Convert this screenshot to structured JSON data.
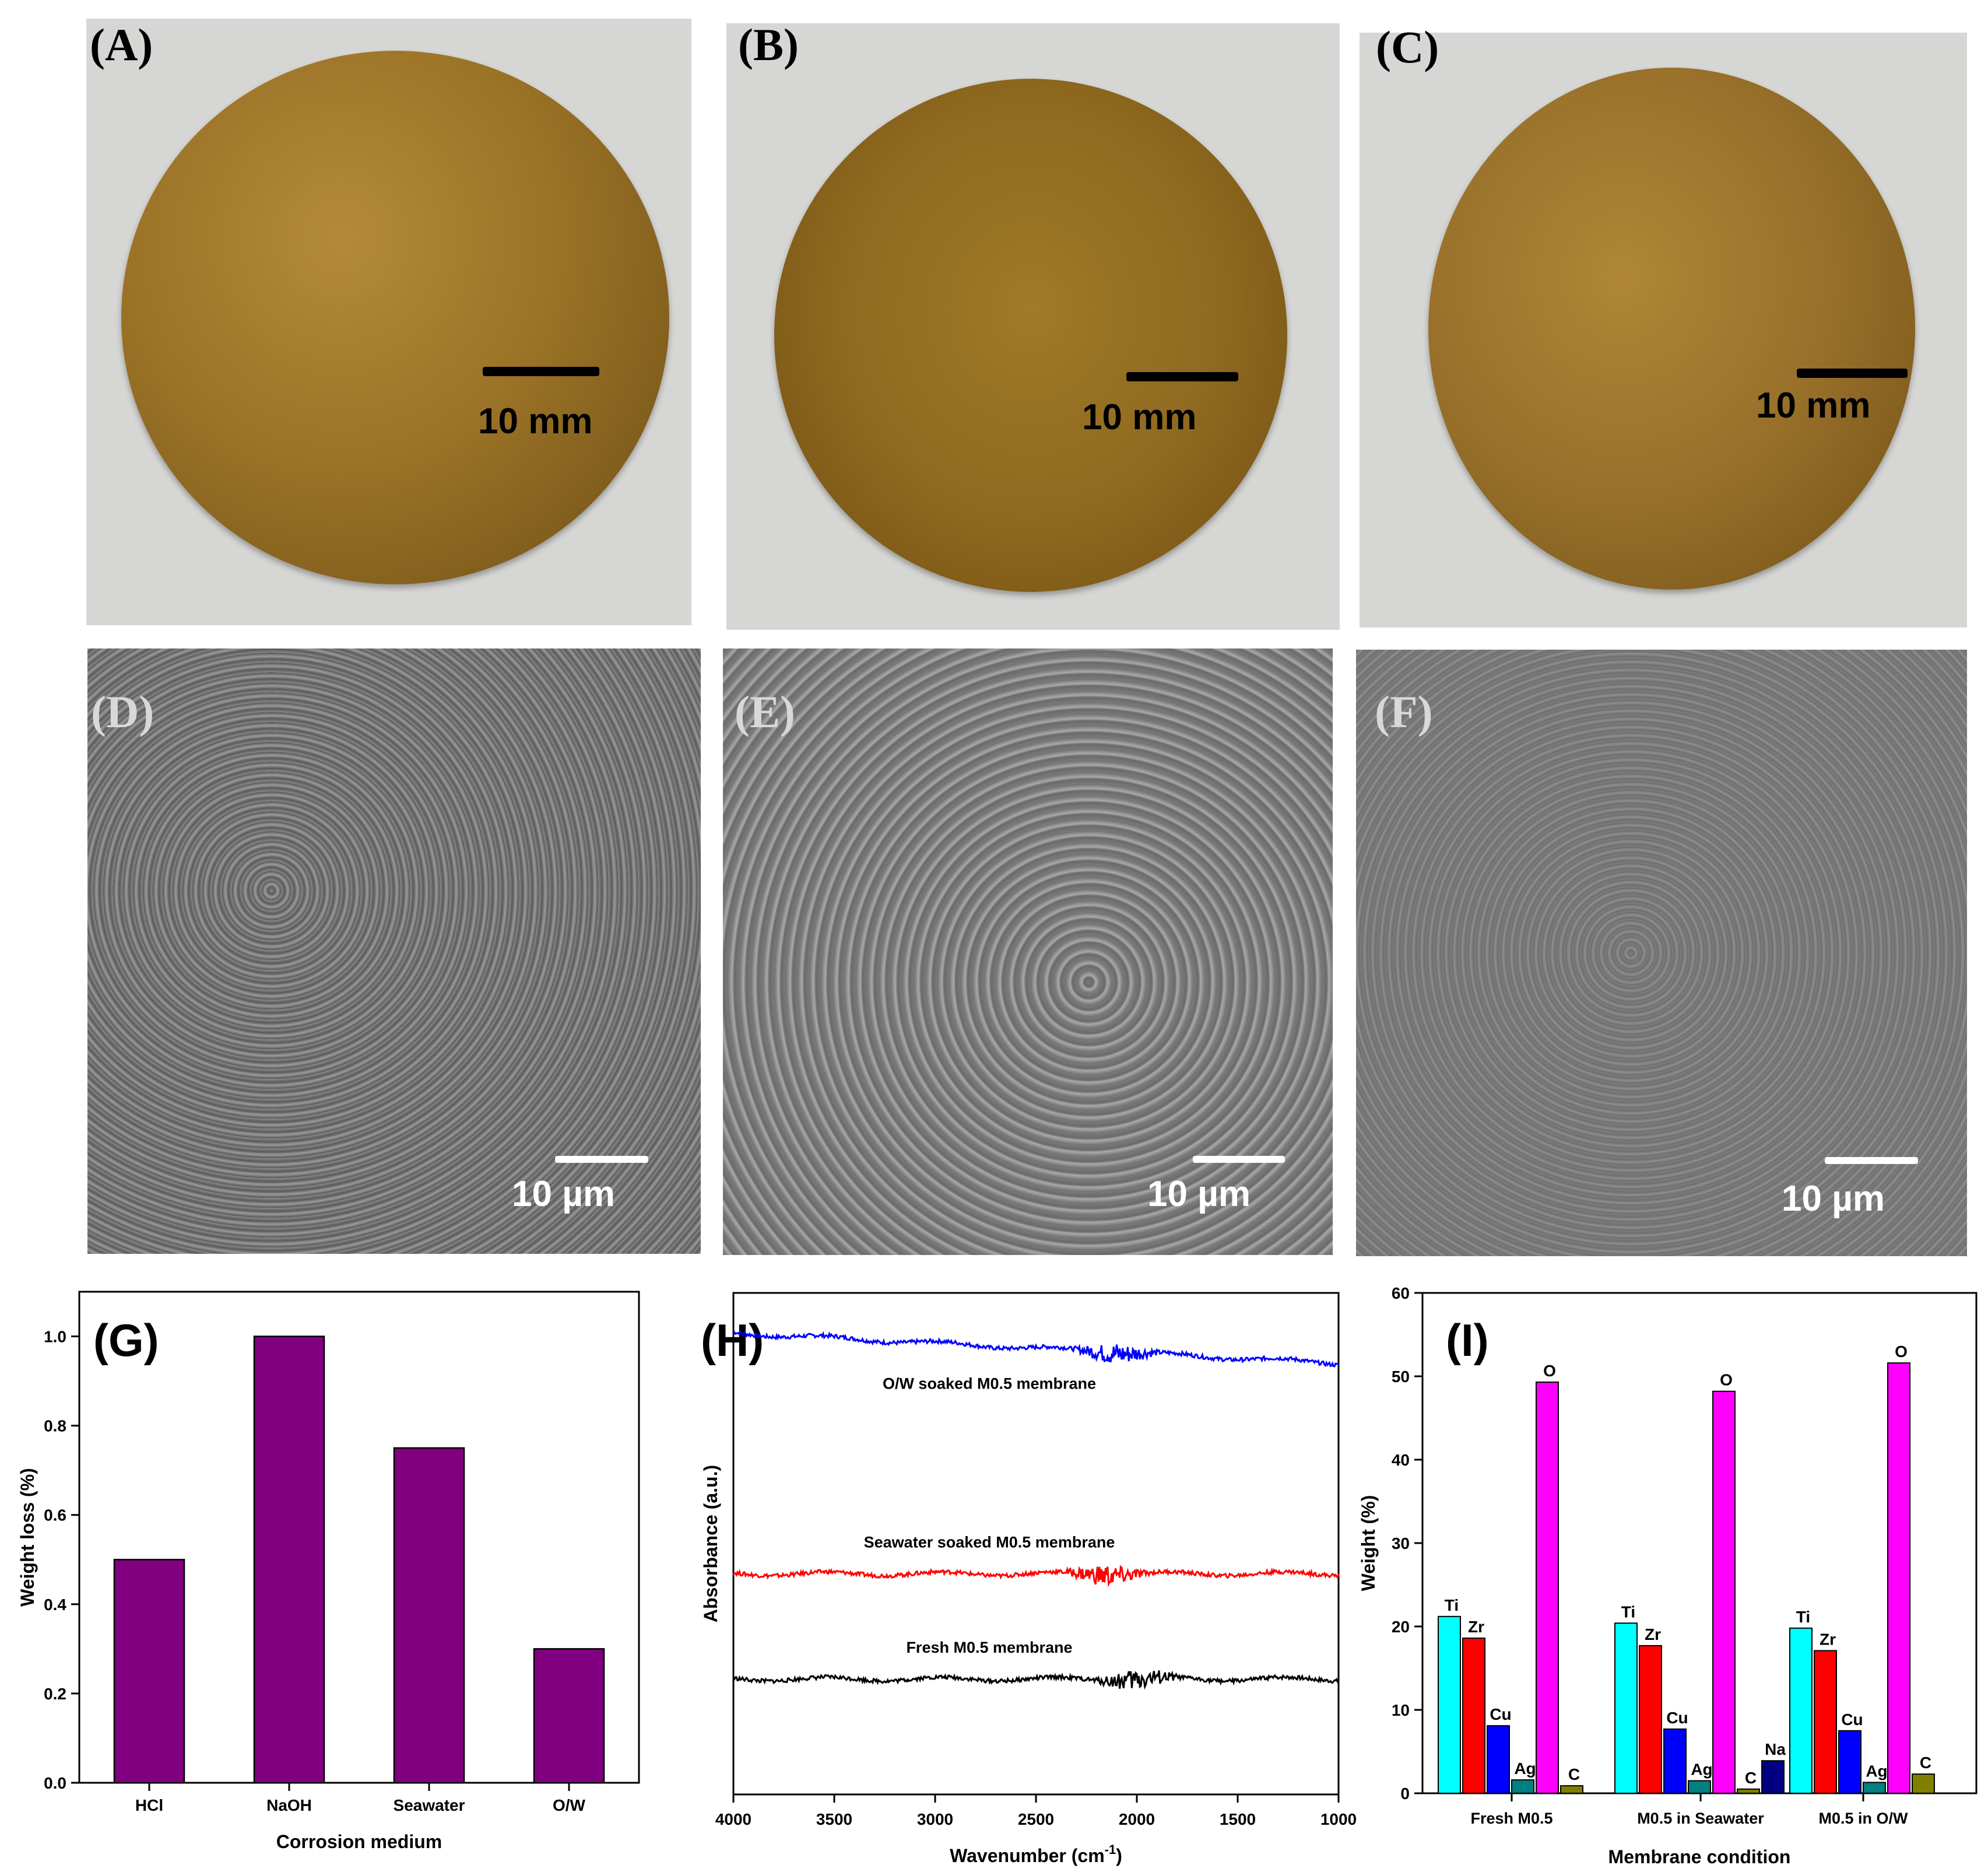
{
  "panels": {
    "a": {
      "label": "(A)",
      "scale": "10 mm"
    },
    "b": {
      "label": "(B)",
      "scale": "10 mm"
    },
    "c": {
      "label": "(C)",
      "scale": "10 mm"
    },
    "d": {
      "label": "(D)",
      "scale": "10 µm"
    },
    "e": {
      "label": "(E)",
      "scale": "10 µm"
    },
    "f": {
      "label": "(F)",
      "scale": "10 µm"
    },
    "g": {
      "label": "(G)"
    },
    "h": {
      "label": "(H)"
    },
    "i": {
      "label": "(I)"
    }
  },
  "colors": {
    "bar_g": "#800080",
    "blue": "#0000ff",
    "red": "#ff0000",
    "black": "#000000",
    "Ti": "#00ffff",
    "Zr": "#ff0000",
    "Cu": "#0000ff",
    "Ag": "#008080",
    "O": "#ff00ff",
    "C": "#808000",
    "Na": "#000080"
  },
  "chart_data": [
    {
      "panel": "G",
      "type": "bar",
      "categories": [
        "HCl",
        "NaOH",
        "Seawater",
        "O/W"
      ],
      "values": [
        0.5,
        1.0,
        0.75,
        0.3
      ],
      "xlabel": "Corrosion medium",
      "ylabel": "Weight loss (%)",
      "ylim": [
        0,
        1.1
      ],
      "yticks": [
        "0.0",
        "0.2",
        "0.4",
        "0.6",
        "0.8",
        "1.0"
      ]
    },
    {
      "panel": "H",
      "type": "line",
      "xlabel": "Wavenumber (cm",
      "xlabel_sup": "-1",
      "xlabel_tail": ")",
      "ylabel": "Absorbance (a.u.)",
      "xlim": [
        4000,
        1000
      ],
      "xticks": [
        "4000",
        "3500",
        "3000",
        "2500",
        "2000",
        "1500",
        "1000"
      ],
      "series": [
        {
          "name": "O/W soaked M0.5 membrane",
          "color": "#0000ff",
          "offset": 0.92,
          "drift": -0.06,
          "noise_center": 2100
        },
        {
          "name": "Seawater soaked M0.5 membrane",
          "color": "#ff0000",
          "offset": 0.44,
          "drift": 0.0,
          "noise_center": 2150
        },
        {
          "name": "Fresh M0.5 membrane",
          "color": "#000000",
          "offset": 0.23,
          "drift": 0.0,
          "noise_center": 2000
        }
      ]
    },
    {
      "panel": "I",
      "type": "bar",
      "categories": [
        "Fresh M0.5",
        "M0.5 in Seawater",
        "M0.5 in O/W"
      ],
      "xlabel": "Membrane condition",
      "ylabel": "Weight (%)",
      "ylim": [
        0,
        60
      ],
      "yticks": [
        "0",
        "10",
        "20",
        "30",
        "40",
        "50",
        "60"
      ],
      "groups": [
        [
          {
            "el": "Ti",
            "v": 21.2
          },
          {
            "el": "Zr",
            "v": 18.6
          },
          {
            "el": "Cu",
            "v": 8.1
          },
          {
            "el": "Ag",
            "v": 1.6
          },
          {
            "el": "O",
            "v": 49.3
          },
          {
            "el": "C",
            "v": 0.9
          }
        ],
        [
          {
            "el": "Ti",
            "v": 20.4
          },
          {
            "el": "Zr",
            "v": 17.7
          },
          {
            "el": "Cu",
            "v": 7.7
          },
          {
            "el": "Ag",
            "v": 1.5
          },
          {
            "el": "O",
            "v": 48.2
          },
          {
            "el": "C",
            "v": 0.5
          },
          {
            "el": "Na",
            "v": 3.9
          }
        ],
        [
          {
            "el": "Ti",
            "v": 19.8
          },
          {
            "el": "Zr",
            "v": 17.1
          },
          {
            "el": "Cu",
            "v": 7.5
          },
          {
            "el": "Ag",
            "v": 1.3
          },
          {
            "el": "O",
            "v": 51.6
          },
          {
            "el": "C",
            "v": 2.3
          }
        ]
      ]
    }
  ]
}
